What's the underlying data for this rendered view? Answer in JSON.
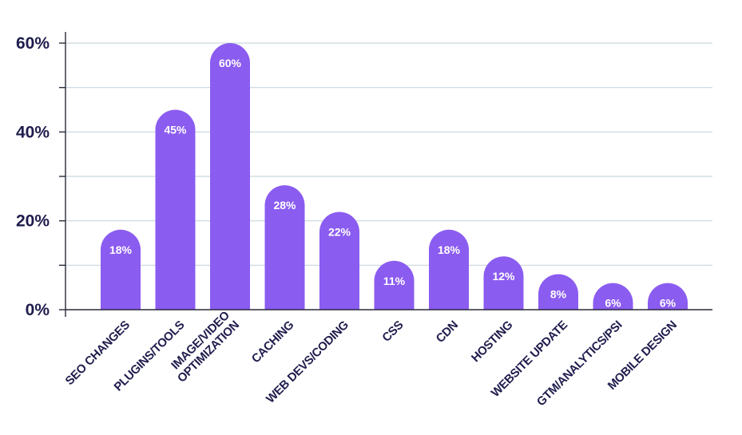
{
  "chart_data": {
    "type": "bar",
    "title": "",
    "xlabel": "",
    "ylabel": "",
    "categories": [
      [
        "SEO CHANGES"
      ],
      [
        "PLUGINS/TOOLS"
      ],
      [
        "IMAGE/VIDEO",
        "OPTIMIZATION"
      ],
      [
        "CACHING"
      ],
      [
        "WEB DEVS/CODING"
      ],
      [
        "CSS"
      ],
      [
        "CDN"
      ],
      [
        "HOSTING"
      ],
      [
        "WEBSITE UPDATE"
      ],
      [
        "GTM/ANALYTICS/PSI"
      ],
      [
        "MOBILE DESIGN"
      ]
    ],
    "values": [
      18,
      45,
      60,
      28,
      22,
      11,
      18,
      12,
      8,
      6,
      6
    ],
    "data_labels": [
      "18%",
      "45%",
      "60%",
      "28%",
      "22%",
      "11%",
      "18%",
      "12%",
      "8%",
      "6%",
      "6%"
    ],
    "ylim": [
      0,
      60
    ],
    "y_ticks": [
      0,
      20,
      40,
      60
    ],
    "y_tick_labels": [
      "0%",
      "20%",
      "40%",
      "60%"
    ],
    "y_minor_ticks": [
      10,
      30,
      50
    ],
    "grid": true,
    "legend": "none",
    "colors": {
      "bar": "#8b5cf0",
      "grid": "#c9d6de",
      "axis": "#2a2a3a",
      "text": "#1f1d4d",
      "data_label": "#ffffff"
    }
  }
}
